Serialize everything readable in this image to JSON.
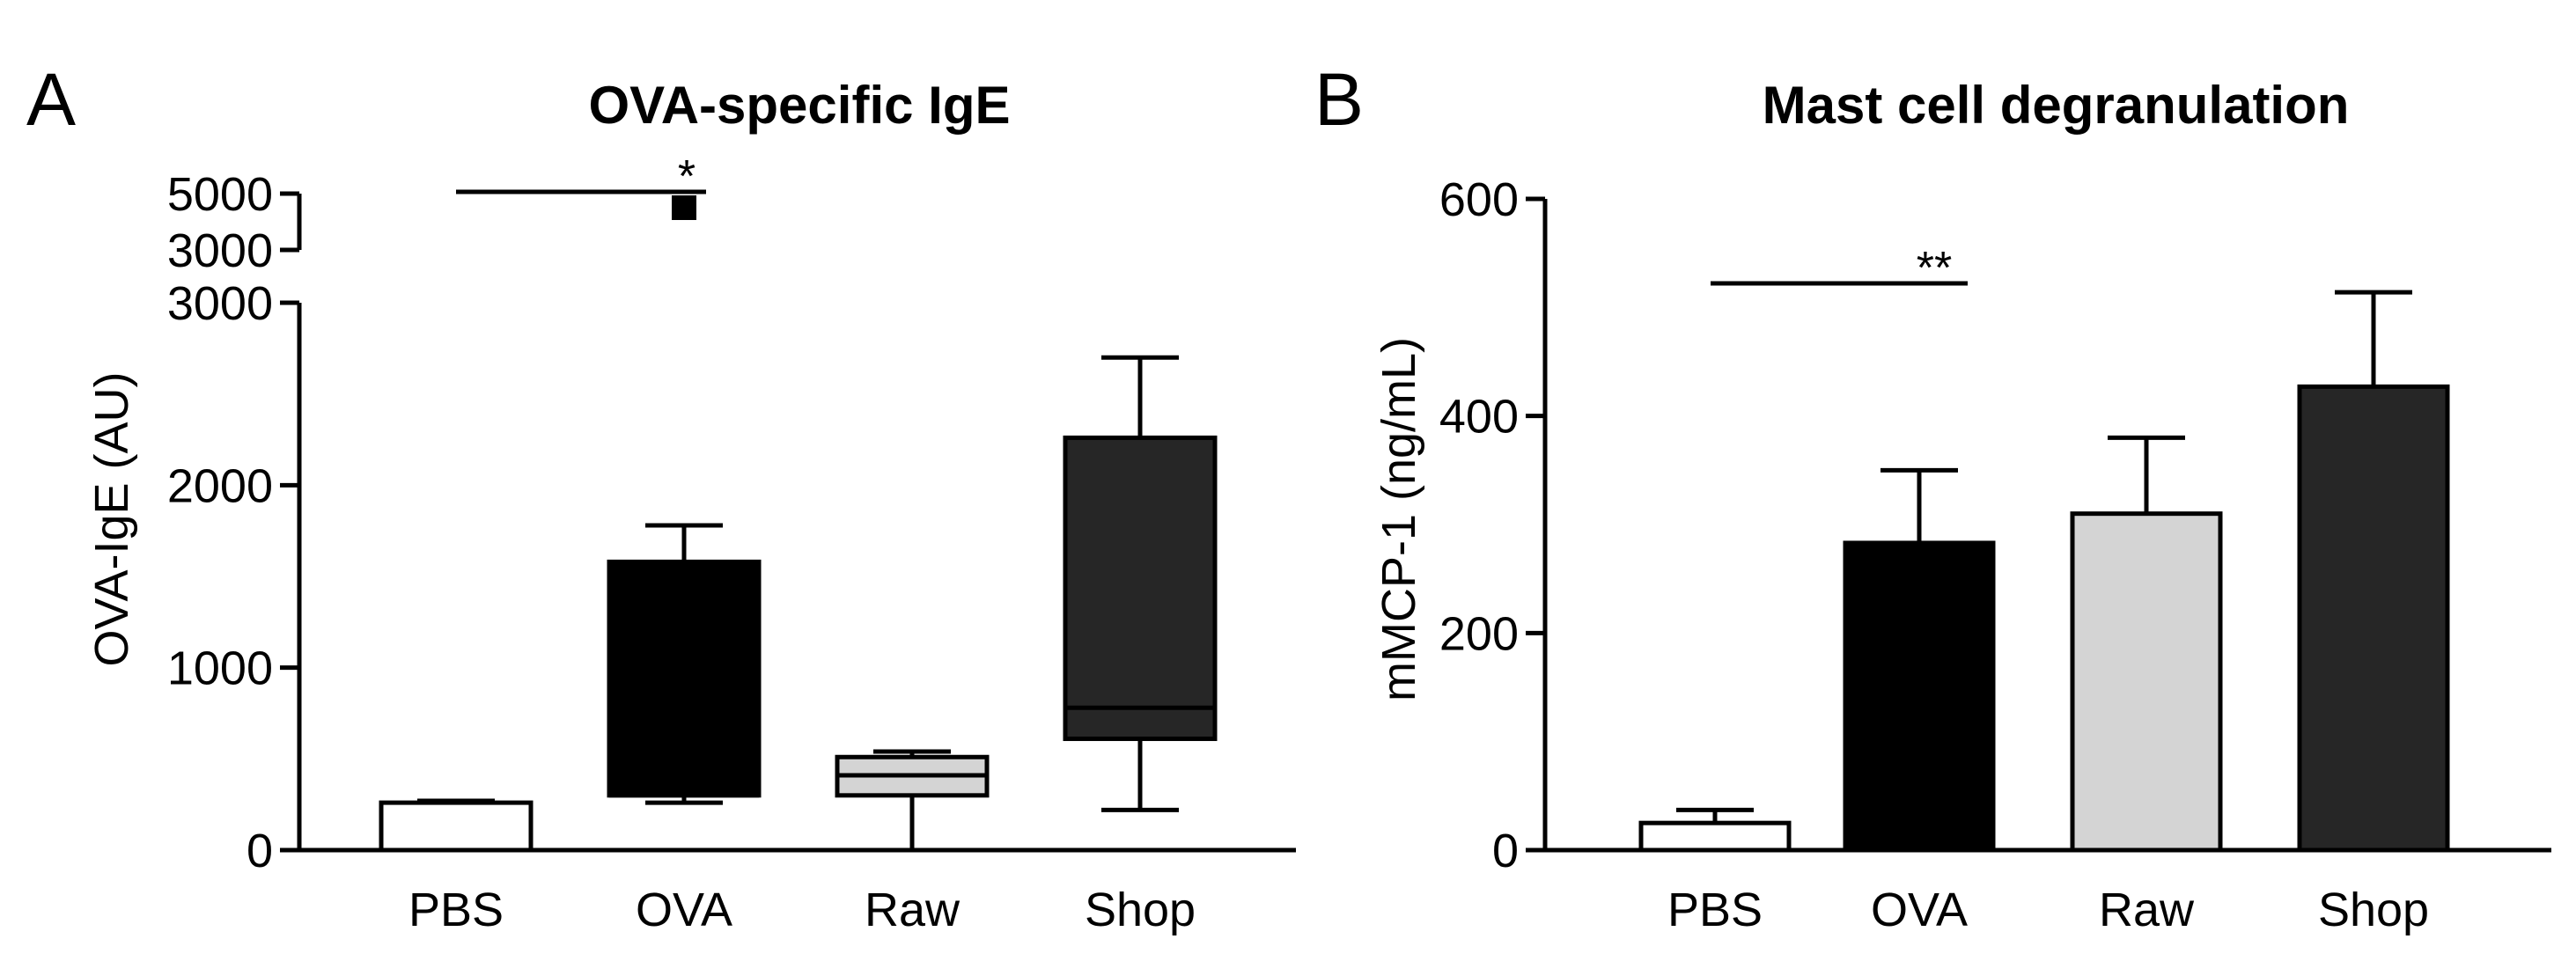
{
  "chart_data": [
    {
      "panel": "A",
      "type": "box",
      "title": "OVA-specific IgE",
      "ylabel": "OVA-IgE (AU)",
      "categories": [
        "PBS",
        "OVA",
        "Raw",
        "Shop"
      ],
      "fills": [
        "#ffffff",
        "#000000",
        "#d4d4d4",
        "#262626"
      ],
      "ylim": [
        0,
        3000
      ],
      "y_break_upper": {
        "range": [
          3000,
          5000
        ],
        "ticks": [
          "5000",
          "3000"
        ]
      },
      "yticks": [
        "0",
        "1000",
        "2000",
        "3000"
      ],
      "boxes": [
        {
          "category": "PBS",
          "min": 0,
          "q1": 0,
          "median": 0,
          "q3": 260,
          "max": 270
        },
        {
          "category": "OVA",
          "min": 260,
          "q1": 300,
          "median": 300,
          "q3": 1580,
          "max": 1780
        },
        {
          "category": "Raw",
          "min": 0,
          "q1": 300,
          "median": 410,
          "q3": 510,
          "max": 540
        },
        {
          "category": "Shop",
          "min": 220,
          "q1": 610,
          "median": 780,
          "q3": 2260,
          "max": 2700
        }
      ],
      "outliers": [
        {
          "category": "OVA",
          "value": 4500
        }
      ],
      "significance": [
        {
          "from": "PBS",
          "to": "OVA",
          "label": "*"
        }
      ]
    },
    {
      "panel": "B",
      "type": "bar",
      "title": "Mast cell degranulation",
      "ylabel": "mMCP-1 (ng/mL)",
      "categories": [
        "PBS",
        "OVA",
        "Raw",
        "Shop"
      ],
      "fills": [
        "#ffffff",
        "#000000",
        "#d4d4d4",
        "#262626"
      ],
      "values": [
        25,
        283,
        310,
        427
      ],
      "errors": [
        12,
        67,
        70,
        87
      ],
      "ylim": [
        0,
        600
      ],
      "yticks": [
        "0",
        "200",
        "400",
        "600"
      ],
      "significance": [
        {
          "from": "PBS",
          "to": "OVA",
          "label": "**"
        }
      ]
    }
  ]
}
